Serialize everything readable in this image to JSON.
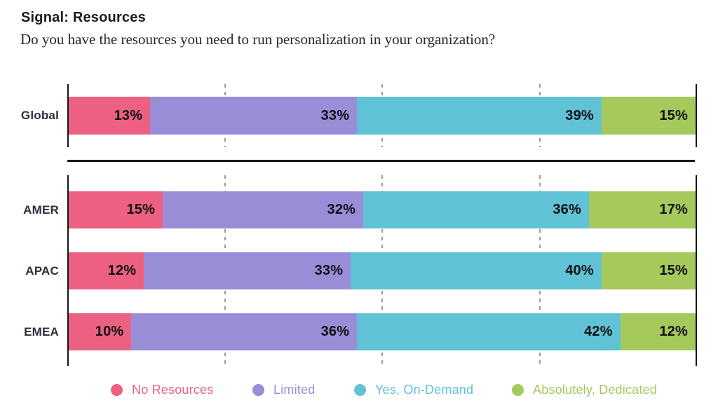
{
  "page": {
    "title": "Signal: Resources",
    "subtitle": "Do you have the resources you need to run personalization in your organization?"
  },
  "chart_data": {
    "type": "bar",
    "variant": "horizontal-stacked",
    "title": "Signal: Resources",
    "subtitle": "Do you have the resources you need to run personalization in your organization?",
    "categories": [
      "Global",
      "AMER",
      "APAC",
      "EMEA"
    ],
    "row_groups": [
      [
        "Global"
      ],
      [
        "AMER",
        "APAC",
        "EMEA"
      ]
    ],
    "series": [
      {
        "name": "No Resources",
        "color": "#EC6181",
        "values": [
          13,
          15,
          12,
          10
        ]
      },
      {
        "name": "Limited",
        "color": "#9A8DD8",
        "values": [
          33,
          32,
          33,
          36
        ]
      },
      {
        "name": "Yes, On-Demand",
        "color": "#60C2D5",
        "values": [
          39,
          36,
          40,
          42
        ]
      },
      {
        "name": "Absolutely, Dedicated",
        "color": "#A6C95C",
        "values": [
          15,
          17,
          15,
          12
        ]
      }
    ],
    "value_suffix": "%",
    "xlim": [
      0,
      100
    ],
    "gridlines_pct": [
      25,
      50,
      75
    ],
    "grid_style": "dashed",
    "legend_position": "bottom",
    "colors": {
      "axis": "#141414",
      "gridline": "#9b9b9b",
      "value_label": "#101014",
      "row_label": "#2e2e3c"
    }
  }
}
